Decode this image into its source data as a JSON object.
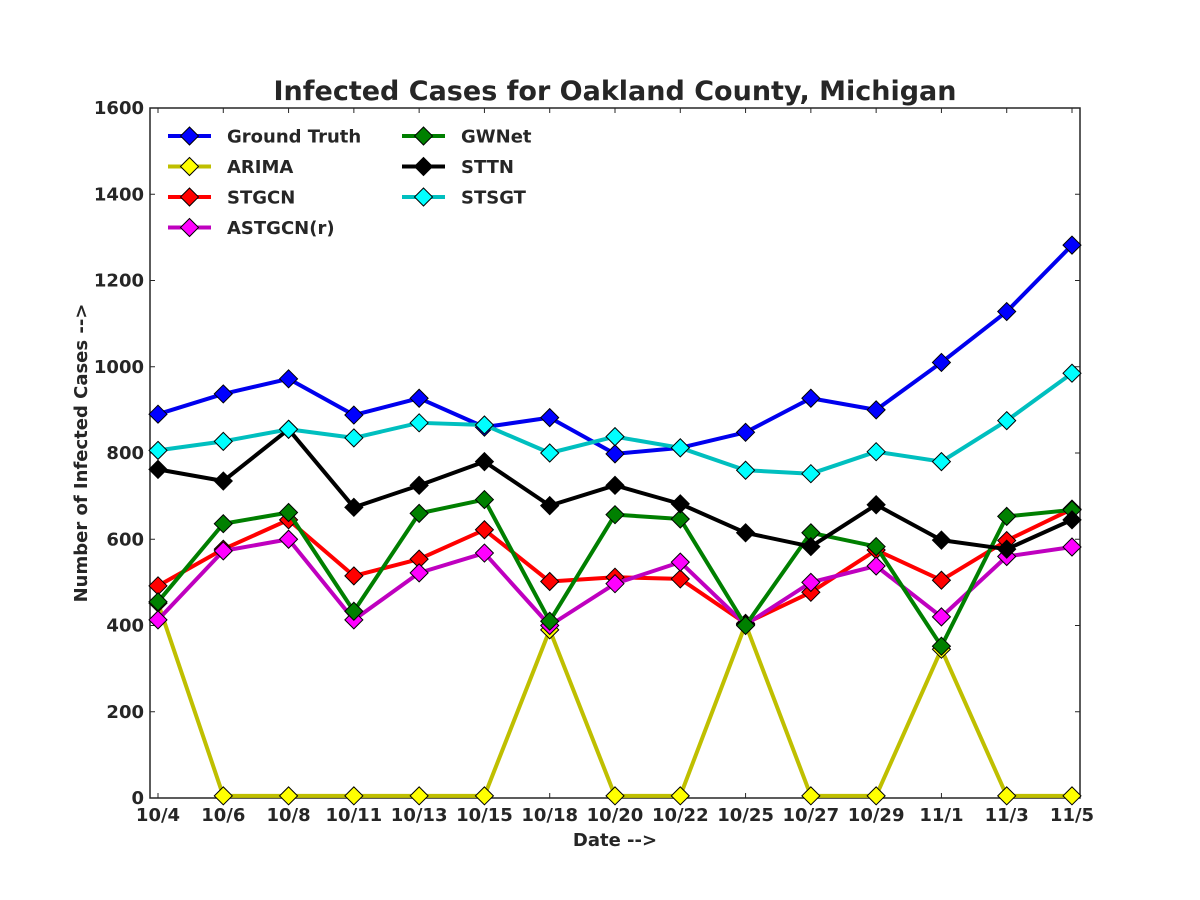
{
  "chart_data": {
    "type": "line",
    "title": "Infected Cases for Oakland County, Michigan",
    "xlabel": "Date -->",
    "ylabel": "Number of Infected Cases -->",
    "categories": [
      "10/4",
      "10/6",
      "10/8",
      "10/11",
      "10/13",
      "10/15",
      "10/18",
      "10/20",
      "10/22",
      "10/25",
      "10/27",
      "10/29",
      "11/1",
      "11/3",
      "11/5"
    ],
    "ylim": [
      0,
      1600
    ],
    "yticks": [
      0,
      200,
      400,
      600,
      800,
      1000,
      1200,
      1400,
      1600
    ],
    "grid": false,
    "legend_position": "top-left",
    "series": [
      {
        "name": "Ground Truth",
        "color": "#0000ee",
        "marker_fill": "#0000ff",
        "values": [
          890,
          937,
          972,
          888,
          927,
          860,
          882,
          798,
          812,
          848,
          927,
          900,
          1010,
          1128,
          1282
        ]
      },
      {
        "name": "ARIMA",
        "color": "#bfbf00",
        "marker_fill": "#ffff00",
        "values": [
          452,
          5,
          5,
          5,
          5,
          5,
          390,
          5,
          5,
          403,
          5,
          5,
          345,
          5,
          5
        ]
      },
      {
        "name": "STGCN",
        "color": "#ff0000",
        "marker_fill": "#ff0000",
        "values": [
          492,
          577,
          645,
          515,
          554,
          622,
          502,
          512,
          508,
          405,
          477,
          575,
          505,
          597,
          670
        ]
      },
      {
        "name": "ASTGCN(r)",
        "color": "#bf00bf",
        "marker_fill": "#ff00ff",
        "values": [
          413,
          573,
          600,
          413,
          522,
          568,
          400,
          497,
          547,
          402,
          500,
          538,
          420,
          560,
          582
        ]
      },
      {
        "name": "GWNet",
        "color": "#007f00",
        "marker_fill": "#008000",
        "values": [
          455,
          636,
          662,
          433,
          660,
          692,
          410,
          657,
          647,
          400,
          615,
          583,
          352,
          653,
          668
        ]
      },
      {
        "name": "STTN",
        "color": "#000000",
        "marker_fill": "#000000",
        "values": [
          762,
          735,
          855,
          674,
          725,
          780,
          678,
          725,
          682,
          615,
          583,
          680,
          598,
          577,
          645
        ]
      },
      {
        "name": "STSGT",
        "color": "#00bfbf",
        "marker_fill": "#00ffff",
        "values": [
          806,
          827,
          855,
          835,
          870,
          865,
          800,
          838,
          812,
          760,
          752,
          803,
          780,
          875,
          985
        ]
      }
    ]
  }
}
